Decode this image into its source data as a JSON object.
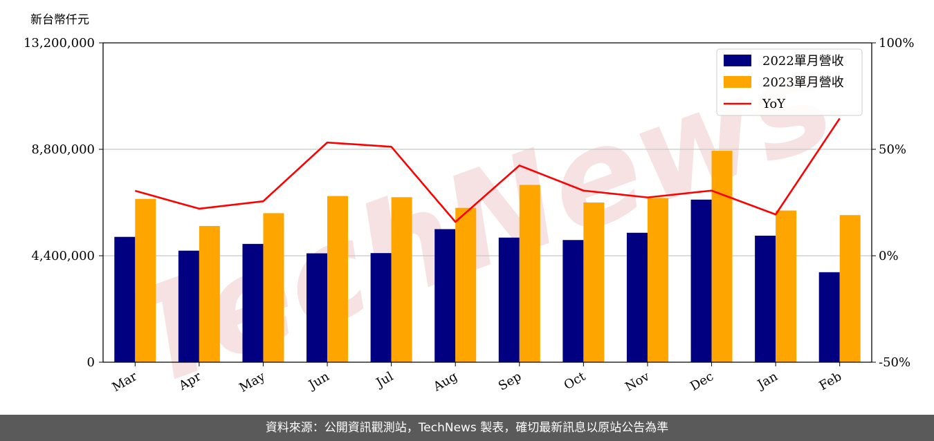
{
  "unit_label": "新台幣仟元",
  "footer_text": "資料來源：公開資訊觀測站，TechNews 製表，確切最新訊息以原站公告為準",
  "watermark_text": "TechNews",
  "colors": {
    "series_2022": "#000080",
    "series_2023": "#ffa500",
    "yoy_line": "#ff0000",
    "grid": "#c8c8c8",
    "footer_bg": "#5a5a5a"
  },
  "chart_data": {
    "type": "bar",
    "categories": [
      "Mar",
      "Apr",
      "May",
      "Jun",
      "Jul",
      "Aug",
      "Sep",
      "Oct",
      "Nov",
      "Dec",
      "Jan",
      "Feb"
    ],
    "series": [
      {
        "name": "2022單月營收",
        "values": [
          5180000,
          4610000,
          4890000,
          4500000,
          4510000,
          5500000,
          5150000,
          5050000,
          5350000,
          6720000,
          5230000,
          3720000
        ]
      },
      {
        "name": "2023單月營收",
        "values": [
          6750000,
          5630000,
          6160000,
          6870000,
          6820000,
          6380000,
          7330000,
          6600000,
          6790000,
          8740000,
          6270000,
          6080000
        ]
      }
    ],
    "line_series": {
      "name": "YoY",
      "values": [
        30.5,
        22.1,
        25.6,
        53.2,
        51.2,
        15.9,
        42.4,
        30.6,
        27.4,
        30.6,
        19.4,
        64.5
      ]
    },
    "y_left": {
      "ticks": [
        "0",
        "4,400,000",
        "8,800,000",
        "13,200,000"
      ],
      "tick_values": [
        0,
        4400000,
        8800000,
        13200000
      ],
      "ylim": [
        0,
        13200000
      ]
    },
    "y_right": {
      "ticks": [
        "-50%",
        "0%",
        "50%",
        "100%"
      ],
      "tick_values": [
        -50,
        0,
        50,
        100
      ],
      "ylim": [
        -50,
        100
      ]
    },
    "legend": {
      "position": "top-right",
      "entries": [
        "2022單月營收",
        "2023單月營收",
        "YoY"
      ]
    },
    "grid": "horizontal",
    "title": "",
    "xlabel": "",
    "ylabel": "新台幣仟元"
  }
}
